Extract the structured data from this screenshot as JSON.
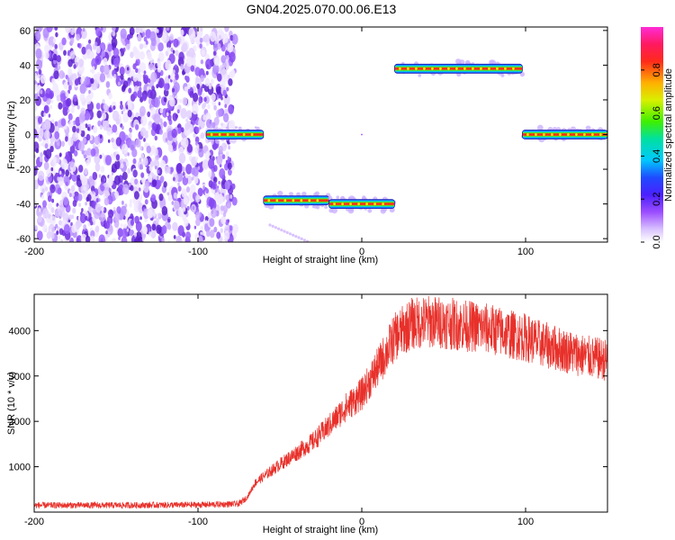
{
  "title": "GN04.2025.070.00.06.E13",
  "colors": {
    "snr_line": "#e8302a",
    "noise": "#7a3ff0",
    "frame": "#000000",
    "colormap": [
      "#ffffff",
      "#d9c2ff",
      "#9b4dff",
      "#6a1ddb",
      "#1f2bff",
      "#00c8ff",
      "#00e08a",
      "#5ef000",
      "#f5f000",
      "#ff9a00",
      "#ff1a1a",
      "#ff2bd5"
    ]
  },
  "chart_data": [
    {
      "type": "heatmap",
      "panel": "spectrogram",
      "xlabel": "Height of straight line (km)",
      "ylabel": "Frequency (Hz)",
      "xlim": [
        -200,
        150
      ],
      "ylim": [
        -62,
        62
      ],
      "x_ticks": [
        -200,
        -100,
        0,
        100
      ],
      "y_ticks": [
        -60,
        -40,
        -20,
        0,
        20,
        40,
        60
      ],
      "noise_region": {
        "x": [
          -200,
          -77
        ],
        "y": [
          -62,
          62
        ],
        "amplitude": 0.15
      },
      "features": [
        {
          "x": [
            -95,
            -60
          ],
          "y": 0,
          "amplitude": 1.0
        },
        {
          "x": [
            -60,
            -20
          ],
          "y": -38,
          "amplitude": 1.0
        },
        {
          "x": [
            -20,
            20
          ],
          "y": -40,
          "amplitude": 1.0
        },
        {
          "x": [
            20,
            98
          ],
          "y": 38,
          "amplitude": 1.0
        },
        {
          "x": [
            98,
            150
          ],
          "y": 0,
          "amplitude": 1.0
        }
      ],
      "colorbar": {
        "label": "Normalized spectral amplitude",
        "range": [
          0,
          1
        ],
        "ticks": [
          "0.0",
          "0.2",
          "0.4",
          "0.6",
          "0.8"
        ]
      }
    },
    {
      "type": "line",
      "panel": "snr",
      "xlabel": "Height of straight line (km)",
      "ylabel": "SNR (10 * v/v)",
      "xlim": [
        -200,
        150
      ],
      "ylim": [
        0,
        4800
      ],
      "x_ticks": [
        -200,
        -100,
        0,
        100
      ],
      "y_ticks": [
        1000,
        2000,
        3000,
        4000
      ],
      "series": [
        {
          "x": [
            -200,
            -150,
            -100,
            -75,
            -70,
            -65,
            -50,
            -30,
            -20,
            -10,
            0,
            10,
            20,
            30,
            40,
            50,
            60,
            70,
            80,
            90,
            100,
            110,
            120,
            130,
            140,
            150
          ],
          "y": [
            150,
            150,
            160,
            180,
            320,
            650,
            1050,
            1550,
            1900,
            2300,
            2600,
            3200,
            3850,
            4150,
            4200,
            4180,
            4120,
            4080,
            4020,
            3920,
            3850,
            3700,
            3600,
            3500,
            3400,
            3350
          ]
        }
      ]
    }
  ]
}
